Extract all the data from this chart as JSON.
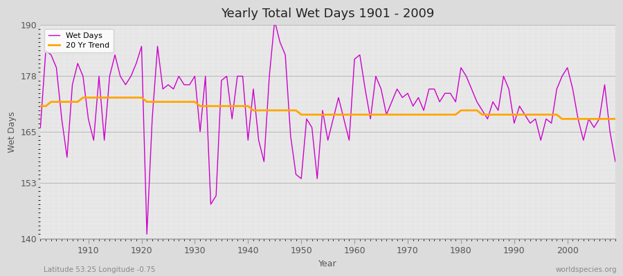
{
  "title": "Yearly Total Wet Days 1901 - 2009",
  "xlabel": "Year",
  "ylabel": "Wet Days",
  "subtitle": "Latitude 53.25 Longitude -0.75",
  "watermark": "worldspecies.org",
  "xlim": [
    1901,
    2009
  ],
  "ylim": [
    140,
    190
  ],
  "yticks": [
    140,
    153,
    165,
    178,
    190
  ],
  "xticks": [
    1910,
    1920,
    1930,
    1940,
    1950,
    1960,
    1970,
    1980,
    1990,
    2000
  ],
  "wet_days_color": "#CC00CC",
  "trend_color": "#FFA500",
  "outer_bg": "#DCDCDC",
  "plot_bg_color": "#E8E8E8",
  "years": [
    1901,
    1902,
    1903,
    1904,
    1905,
    1906,
    1907,
    1908,
    1909,
    1910,
    1911,
    1912,
    1913,
    1914,
    1915,
    1916,
    1917,
    1918,
    1919,
    1920,
    1921,
    1922,
    1923,
    1924,
    1925,
    1926,
    1927,
    1928,
    1929,
    1930,
    1931,
    1932,
    1933,
    1934,
    1935,
    1936,
    1937,
    1938,
    1939,
    1940,
    1941,
    1942,
    1943,
    1944,
    1945,
    1946,
    1947,
    1948,
    1949,
    1950,
    1951,
    1952,
    1953,
    1954,
    1955,
    1956,
    1957,
    1958,
    1959,
    1960,
    1961,
    1962,
    1963,
    1964,
    1965,
    1966,
    1967,
    1968,
    1969,
    1970,
    1971,
    1972,
    1973,
    1974,
    1975,
    1976,
    1977,
    1978,
    1979,
    1980,
    1981,
    1982,
    1983,
    1984,
    1985,
    1986,
    1987,
    1988,
    1989,
    1990,
    1991,
    1992,
    1993,
    1994,
    1995,
    1996,
    1997,
    1998,
    1999,
    2000,
    2001,
    2002,
    2003,
    2004,
    2005,
    2006,
    2007,
    2008,
    2009
  ],
  "wet_days": [
    166,
    184,
    183,
    180,
    168,
    159,
    176,
    181,
    178,
    168,
    163,
    178,
    163,
    178,
    183,
    178,
    176,
    178,
    181,
    185,
    141,
    168,
    185,
    175,
    176,
    175,
    178,
    176,
    176,
    178,
    165,
    178,
    148,
    150,
    177,
    178,
    168,
    178,
    178,
    163,
    175,
    163,
    158,
    178,
    191,
    186,
    183,
    164,
    155,
    154,
    168,
    166,
    154,
    170,
    163,
    168,
    173,
    168,
    163,
    182,
    183,
    175,
    168,
    178,
    175,
    169,
    172,
    175,
    173,
    174,
    171,
    173,
    170,
    175,
    175,
    172,
    174,
    174,
    172,
    180,
    178,
    175,
    172,
    170,
    168,
    172,
    170,
    178,
    175,
    167,
    171,
    169,
    167,
    168,
    163,
    168,
    167,
    175,
    178,
    180,
    175,
    168,
    163,
    168,
    166,
    168,
    176,
    165,
    158
  ],
  "trend": [
    171,
    171,
    172,
    172,
    172,
    172,
    172,
    172,
    173,
    173,
    173,
    173,
    173,
    173,
    173,
    173,
    173,
    173,
    173,
    173,
    172,
    172,
    172,
    172,
    172,
    172,
    172,
    172,
    172,
    172,
    171,
    171,
    171,
    171,
    171,
    171,
    171,
    171,
    171,
    171,
    170,
    170,
    170,
    170,
    170,
    170,
    170,
    170,
    170,
    169,
    169,
    169,
    169,
    169,
    169,
    169,
    169,
    169,
    169,
    169,
    169,
    169,
    169,
    169,
    169,
    169,
    169,
    169,
    169,
    169,
    169,
    169,
    169,
    169,
    169,
    169,
    169,
    169,
    169,
    170,
    170,
    170,
    170,
    169,
    169,
    169,
    169,
    169,
    169,
    169,
    169,
    169,
    169,
    169,
    169,
    169,
    169,
    169,
    168,
    168,
    168,
    168,
    168,
    168,
    168,
    168,
    168,
    168,
    168
  ]
}
